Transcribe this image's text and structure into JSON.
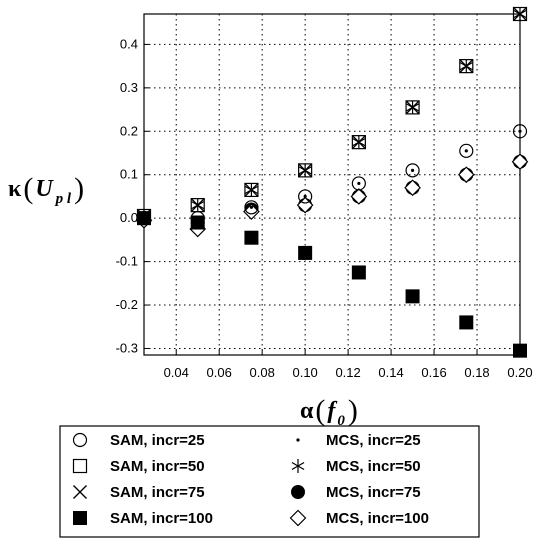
{
  "chart_data": {
    "type": "scatter",
    "xlabel": {
      "symbol": "α",
      "arg": "f",
      "sub": "0"
    },
    "ylabel": {
      "symbol": "κ",
      "arg": "U",
      "sub": "p l"
    },
    "xlim": [
      0.025,
      0.2
    ],
    "ylim": [
      -0.315,
      0.47
    ],
    "x_ticks": [
      0.04,
      0.06,
      0.08,
      0.1,
      0.12,
      0.14,
      0.16,
      0.18,
      0.2
    ],
    "x_tick_labels": [
      "0.04",
      "0.06",
      "0.08",
      "0.10",
      "0.12",
      "0.14",
      "0.16",
      "0.18",
      "0.20"
    ],
    "y_ticks": [
      -0.3,
      -0.2,
      -0.1,
      0.0,
      0.1,
      0.2,
      0.3,
      0.4
    ],
    "y_tick_labels": [
      "-0.3",
      "-0.2",
      "-0.1",
      "0.0",
      "0.1",
      "0.2",
      "0.3",
      "0.4"
    ],
    "grid": true,
    "legend_position": "bottom",
    "x": [
      0.025,
      0.05,
      0.075,
      0.1,
      0.125,
      0.15,
      0.175,
      0.2
    ],
    "series": [
      {
        "name": "SAM, incr=25",
        "marker": "open-circle",
        "values": [
          0.0,
          0.0,
          0.025,
          0.05,
          0.08,
          0.11,
          0.155,
          0.2
        ]
      },
      {
        "name": "SAM, incr=50",
        "marker": "open-square",
        "values": [
          0.005,
          0.03,
          0.065,
          0.11,
          0.175,
          0.255,
          0.35,
          0.47
        ]
      },
      {
        "name": "SAM, incr=75",
        "marker": "x",
        "values": [
          0.005,
          0.03,
          0.065,
          0.11,
          0.175,
          0.255,
          0.35,
          0.47
        ]
      },
      {
        "name": "SAM, incr=100",
        "marker": "filled-square",
        "values": [
          0.0,
          -0.01,
          -0.045,
          -0.08,
          -0.125,
          -0.18,
          -0.24,
          -0.305
        ]
      },
      {
        "name": "MCS, incr=25",
        "marker": "dot",
        "values": [
          0.0,
          0.0,
          0.025,
          0.05,
          0.08,
          0.11,
          0.155,
          0.2
        ]
      },
      {
        "name": "MCS, incr=50",
        "marker": "star",
        "values": [
          0.005,
          0.03,
          0.065,
          0.11,
          0.175,
          0.255,
          0.35,
          0.47
        ]
      },
      {
        "name": "MCS, incr=75",
        "marker": "filled-circle",
        "values": [
          0.0,
          -0.01,
          0.02,
          0.03,
          0.05,
          0.07,
          0.1,
          0.13
        ]
      },
      {
        "name": "MCS, incr=100",
        "marker": "open-diamond",
        "values": [
          -0.005,
          -0.025,
          0.015,
          0.03,
          0.05,
          0.07,
          0.1,
          0.13
        ]
      }
    ]
  }
}
